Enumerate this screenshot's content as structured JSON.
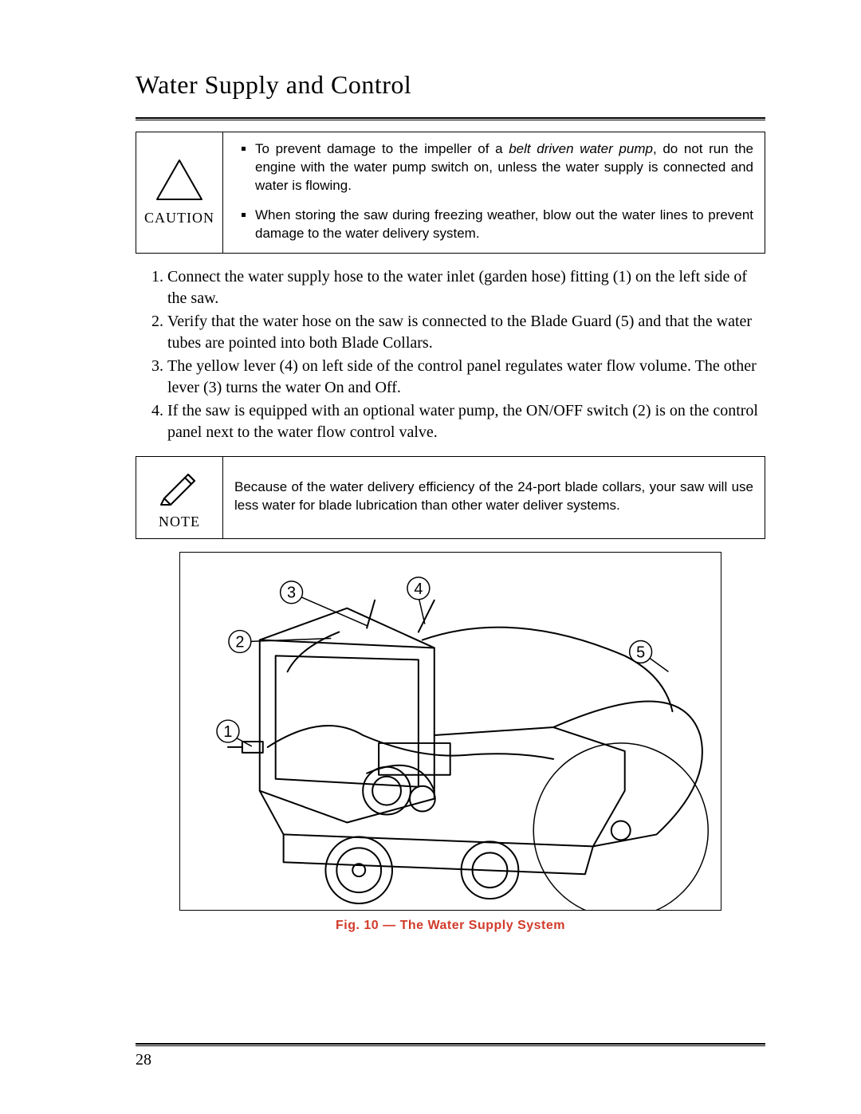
{
  "page": {
    "title": "Water Supply and Control",
    "page_number": "28"
  },
  "caution": {
    "label": "CAUTION",
    "items": [
      "To prevent damage to the impeller of a <em>belt driven water pump</em>, do not run the engine with the water pump switch on, unless the water supply is connected and water is flowing.",
      "When storing the saw during freezing weather, blow out the water lines to prevent damage to the water delivery system."
    ]
  },
  "steps": [
    "Connect the water supply hose to the water inlet (garden hose) fitting (1) on the left side of the saw.",
    "Verify that the water hose on the saw is connected to the Blade Guard (5) and that the water tubes are pointed into both Blade Collars.",
    "The yellow lever (4) on left side of the control panel regulates water flow volume.  The other lever (3) turns the water On and Off.",
    "If the saw is equipped with an optional water pump, the ON/OFF switch (2) is on the control panel next to the water flow control valve."
  ],
  "note": {
    "label": "NOTE",
    "text": "Because of the water delivery efficiency of the 24-port blade collars, your saw will use less water for blade lubrication than other water deliver systems."
  },
  "figure": {
    "caption": "Fig. 10 — The Water Supply System",
    "caption_color": "#d13a2a",
    "callouts": {
      "c1": "1",
      "c2": "2",
      "c3": "3",
      "c4": "4",
      "c5": "5"
    }
  }
}
